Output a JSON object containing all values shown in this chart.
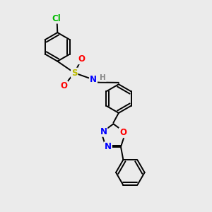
{
  "background_color": "#ebebeb",
  "bond_color": "#000000",
  "atom_colors": {
    "Cl": "#00bb00",
    "S": "#bbbb00",
    "O": "#ff0000",
    "N": "#0000ff",
    "H": "#888888",
    "C": "#000000"
  },
  "font_size": 8.5,
  "lw": 1.4,
  "off": 0.07,
  "ring_r": 0.68
}
